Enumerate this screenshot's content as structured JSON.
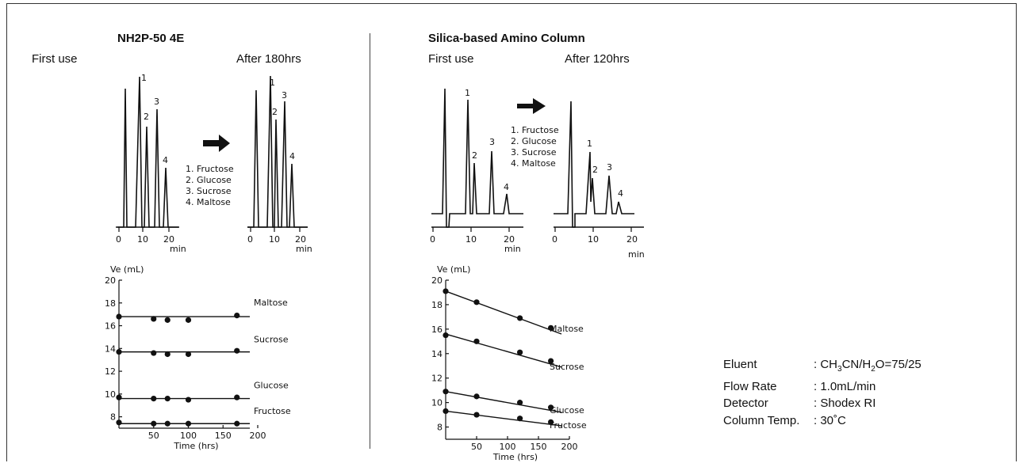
{
  "left_panel": {
    "title": "NH2P-50 4E",
    "first_use_label": "First use",
    "after_label": "After 180hrs",
    "legend": [
      "1. Fructose",
      "2. Glucose",
      "3. Sucrose",
      "4. Maltose"
    ],
    "peak_labels": [
      "1",
      "2",
      "3",
      "4"
    ],
    "min_axis": {
      "ticks": [
        "0",
        "10",
        "20"
      ],
      "unit": "min"
    }
  },
  "right_panel": {
    "title": "Silica-based Amino Column",
    "first_use_label": "First use",
    "after_label": "After 120hrs",
    "legend": [
      "1. Fructose",
      "2. Glucose",
      "3. Sucrose",
      "4. Maltose"
    ],
    "peak_labels": [
      "1",
      "2",
      "3",
      "4"
    ],
    "min_axis": {
      "ticks": [
        "0",
        "10",
        "20"
      ],
      "unit": "min"
    }
  },
  "conditions": [
    {
      "label": "Eluent",
      "value_parts": [
        ": CH",
        "3",
        "CN/H",
        "2",
        "O=75/25"
      ]
    },
    {
      "label": "Flow Rate",
      "value": ": 1.0mL/min"
    },
    {
      "label": "Detector",
      "value": ": Shodex RI"
    },
    {
      "label": "Column Temp.",
      "value": ": 30˚C"
    }
  ],
  "chart_data": [
    {
      "type": "scatter",
      "title": "NH2P-50 4E",
      "xlabel": "Time (hrs)",
      "ylabel": "Ve (mL)",
      "xlim": [
        0,
        200
      ],
      "ylim": [
        7,
        20
      ],
      "xticks": [
        "50",
        "100",
        "150",
        "200"
      ],
      "yticks": [
        "8",
        "10",
        "12",
        "14",
        "16",
        "18",
        "20"
      ],
      "series": [
        {
          "name": "Maltose",
          "x": [
            0,
            50,
            70,
            100,
            170
          ],
          "y": [
            16.8,
            16.6,
            16.5,
            16.5,
            16.9
          ],
          "fit": [
            16.8,
            16.8
          ]
        },
        {
          "name": "Sucrose",
          "x": [
            0,
            50,
            70,
            100,
            170
          ],
          "y": [
            13.7,
            13.6,
            13.5,
            13.5,
            13.8
          ],
          "fit": [
            13.7,
            13.7
          ]
        },
        {
          "name": "Glucose",
          "x": [
            0,
            50,
            70,
            100,
            170
          ],
          "y": [
            9.7,
            9.6,
            9.6,
            9.5,
            9.7
          ],
          "fit": [
            9.6,
            9.6
          ]
        },
        {
          "name": "Fructose",
          "x": [
            0,
            50,
            70,
            100,
            170
          ],
          "y": [
            7.5,
            7.4,
            7.4,
            7.4,
            7.4
          ],
          "fit": [
            7.4,
            7.4
          ]
        }
      ]
    },
    {
      "type": "scatter",
      "title": "Silica-based Amino Column",
      "xlabel": "Time (hrs)",
      "ylabel": "Ve (mL)",
      "xlim": [
        0,
        200
      ],
      "ylim": [
        7,
        20
      ],
      "xticks": [
        "50",
        "100",
        "150",
        "200"
      ],
      "yticks": [
        "8",
        "10",
        "12",
        "14",
        "16",
        "18",
        "20"
      ],
      "series": [
        {
          "name": "Maltose",
          "x": [
            0,
            50,
            120,
            170
          ],
          "y": [
            19.1,
            18.2,
            16.9,
            16.1
          ],
          "fit": [
            19.1,
            15.6
          ]
        },
        {
          "name": "Sucrose",
          "x": [
            0,
            50,
            120,
            170
          ],
          "y": [
            15.5,
            15.0,
            14.1,
            13.4
          ],
          "fit": [
            15.6,
            12.9
          ]
        },
        {
          "name": "Glucose",
          "x": [
            0,
            50,
            120,
            170
          ],
          "y": [
            10.9,
            10.5,
            10.0,
            9.6
          ],
          "fit": [
            10.9,
            9.2
          ]
        },
        {
          "name": "Fructose",
          "x": [
            0,
            50,
            120,
            170
          ],
          "y": [
            9.3,
            9.0,
            8.7,
            8.4
          ],
          "fit": [
            9.3,
            8.1
          ]
        }
      ]
    }
  ]
}
